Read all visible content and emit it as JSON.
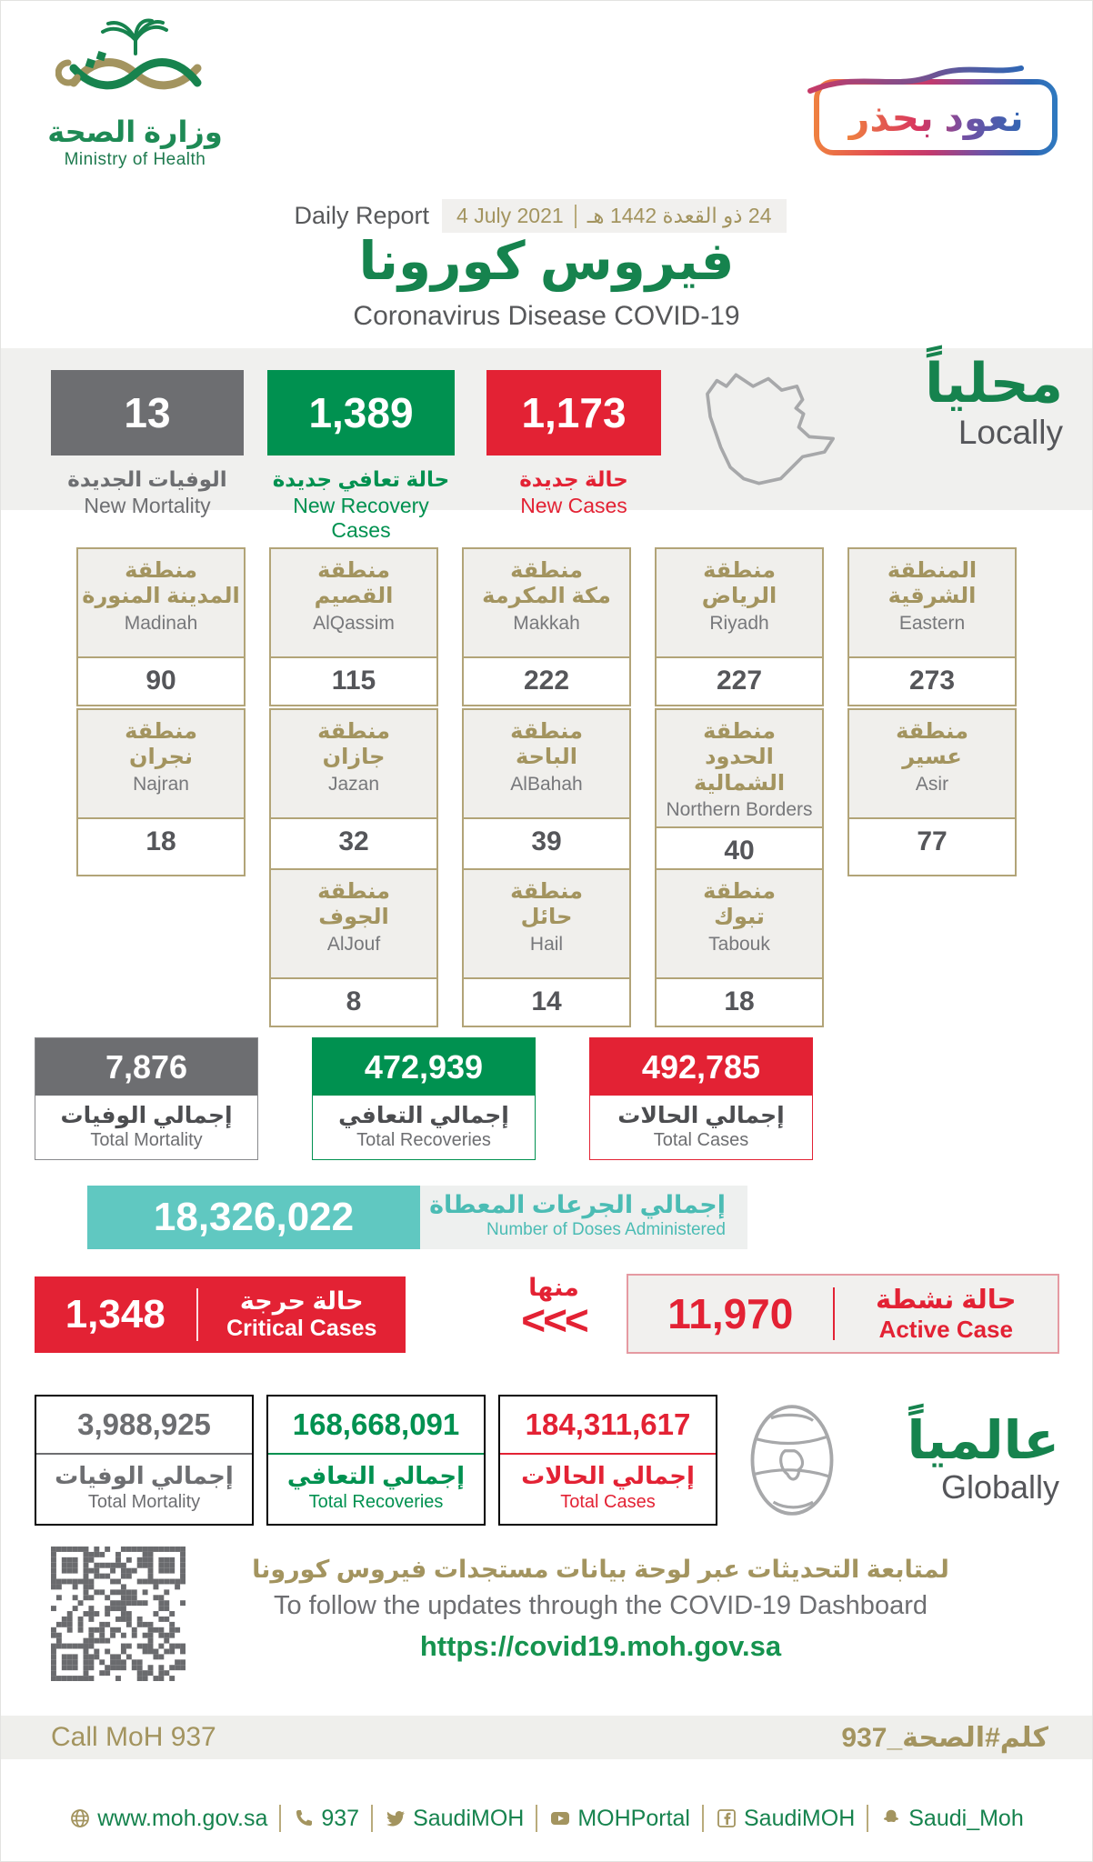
{
  "colors": {
    "green": "#009150",
    "red": "#e32234",
    "gray": "#6d6e71",
    "gold": "#a3945f",
    "teal": "#60c8c1",
    "title_green": "#16834e"
  },
  "header": {
    "logo": {
      "arabic": "وزارة الصحة",
      "english": "Ministry of Health"
    },
    "badge_text": "نعود بحذر",
    "report_line": {
      "english": "Daily Report",
      "gregorian_date": "4 July 2021",
      "hijri_date": "24 ذو القعدة 1442 هـ"
    },
    "title_ar": "فيروس كورونا",
    "title_en": "Coronavirus Disease COVID-19"
  },
  "locally": {
    "heading_ar": "محلياً",
    "heading_en": "Locally",
    "stats": [
      {
        "value": "13",
        "label_ar": "الوفيات الجديدة",
        "label_en": "New Mortality",
        "color": "#6d6e71"
      },
      {
        "value": "1,389",
        "label_ar": "حالة تعافي جديدة",
        "label_en": "New Recovery Cases",
        "color": "#009150"
      },
      {
        "value": "1,173",
        "label_ar": "حالة جديدة",
        "label_en": "New Cases",
        "color": "#e32234"
      }
    ]
  },
  "regions": {
    "rows": [
      [
        {
          "ar1": "منطقة",
          "ar2": "المدينة المنورة",
          "en": "Madinah",
          "value": "90"
        },
        {
          "ar1": "منطقة",
          "ar2": "القصيم",
          "en": "AlQassim",
          "value": "115"
        },
        {
          "ar1": "منطقة",
          "ar2": "مكة المكرمة",
          "en": "Makkah",
          "value": "222"
        },
        {
          "ar1": "منطقة",
          "ar2": "الرياض",
          "en": "Riyadh",
          "value": "227"
        },
        {
          "ar1": "المنطقة",
          "ar2": "الشرقية",
          "en": "Eastern",
          "value": "273"
        }
      ],
      [
        {
          "ar1": "منطقة",
          "ar2": "نجران",
          "en": "Najran",
          "value": "18"
        },
        {
          "ar1": "منطقة",
          "ar2": "جازان",
          "en": "Jazan",
          "value": "32"
        },
        {
          "ar1": "منطقة",
          "ar2": "الباحة",
          "en": "AlBahah",
          "value": "39"
        },
        {
          "ar1": "منطقة",
          "ar2": "الحدود الشمالية",
          "en": "Northern Borders",
          "value": "40"
        },
        {
          "ar1": "منطقة",
          "ar2": "عسير",
          "en": "Asir",
          "value": "77"
        }
      ],
      [
        {
          "ar1": "منطقة",
          "ar2": "الجوف",
          "en": "AlJouf",
          "value": "8"
        },
        {
          "ar1": "منطقة",
          "ar2": "حائل",
          "en": "Hail",
          "value": "14"
        },
        {
          "ar1": "منطقة",
          "ar2": "تبوك",
          "en": "Tabouk",
          "value": "18"
        }
      ]
    ]
  },
  "totals": [
    {
      "value": "7,876",
      "label_ar": "إجمالي الوفيات",
      "label_en": "Total Mortality",
      "color": "#6d6e71"
    },
    {
      "value": "472,939",
      "label_ar": "إجمالي التعافي",
      "label_en": "Total Recoveries",
      "color": "#009150"
    },
    {
      "value": "492,785",
      "label_ar": "إجمالي الحالات",
      "label_en": "Total Cases",
      "color": "#e32234"
    }
  ],
  "doses": {
    "value": "18,326,022",
    "label_ar": "إجمالي الجرعات المعطاة",
    "label_en": "Number of Doses Administered"
  },
  "critical_active": {
    "critical": {
      "value": "1,348",
      "label_ar": "حالة حرجة",
      "label_en": "Critical Cases"
    },
    "of_which_ar": "منها",
    "arrows": "<<<",
    "active": {
      "value": "11,970",
      "label_ar": "حالة نشطة",
      "label_en": "Active Case"
    }
  },
  "globally": {
    "heading_ar": "عالمياً",
    "heading_en": "Globally",
    "stats": [
      {
        "value": "3,988,925",
        "label_ar": "إجمالي الوفيات",
        "label_en": "Total Mortality",
        "color": "#6d6e71"
      },
      {
        "value": "168,668,091",
        "label_ar": "إجمالي التعافي",
        "label_en": "Total Recoveries",
        "color": "#009150"
      },
      {
        "value": "184,311,617",
        "label_ar": "إجمالي الحالات",
        "label_en": "Total Cases",
        "color": "#e32234"
      }
    ]
  },
  "dashboard": {
    "line_ar": "لمتابعة التحديثات عبر لوحة بيانات مستجدات فيروس كورونا",
    "line_en": "To follow the updates through the COVID-19 Dashboard",
    "url": "https://covid19.moh.gov.sa"
  },
  "hotline": {
    "en": "Call MoH 937",
    "ar": "كلم#الصحة_937"
  },
  "footer": {
    "items": [
      {
        "icon": "globe-icon",
        "label": "www.moh.gov.sa"
      },
      {
        "icon": "phone-icon",
        "label": "937"
      },
      {
        "icon": "twitter-icon",
        "label": "SaudiMOH"
      },
      {
        "icon": "youtube-icon",
        "label": "MOHPortal"
      },
      {
        "icon": "facebook-icon",
        "label": "SaudiMOH"
      },
      {
        "icon": "snapchat-icon",
        "label": "Saudi_Moh"
      }
    ]
  }
}
